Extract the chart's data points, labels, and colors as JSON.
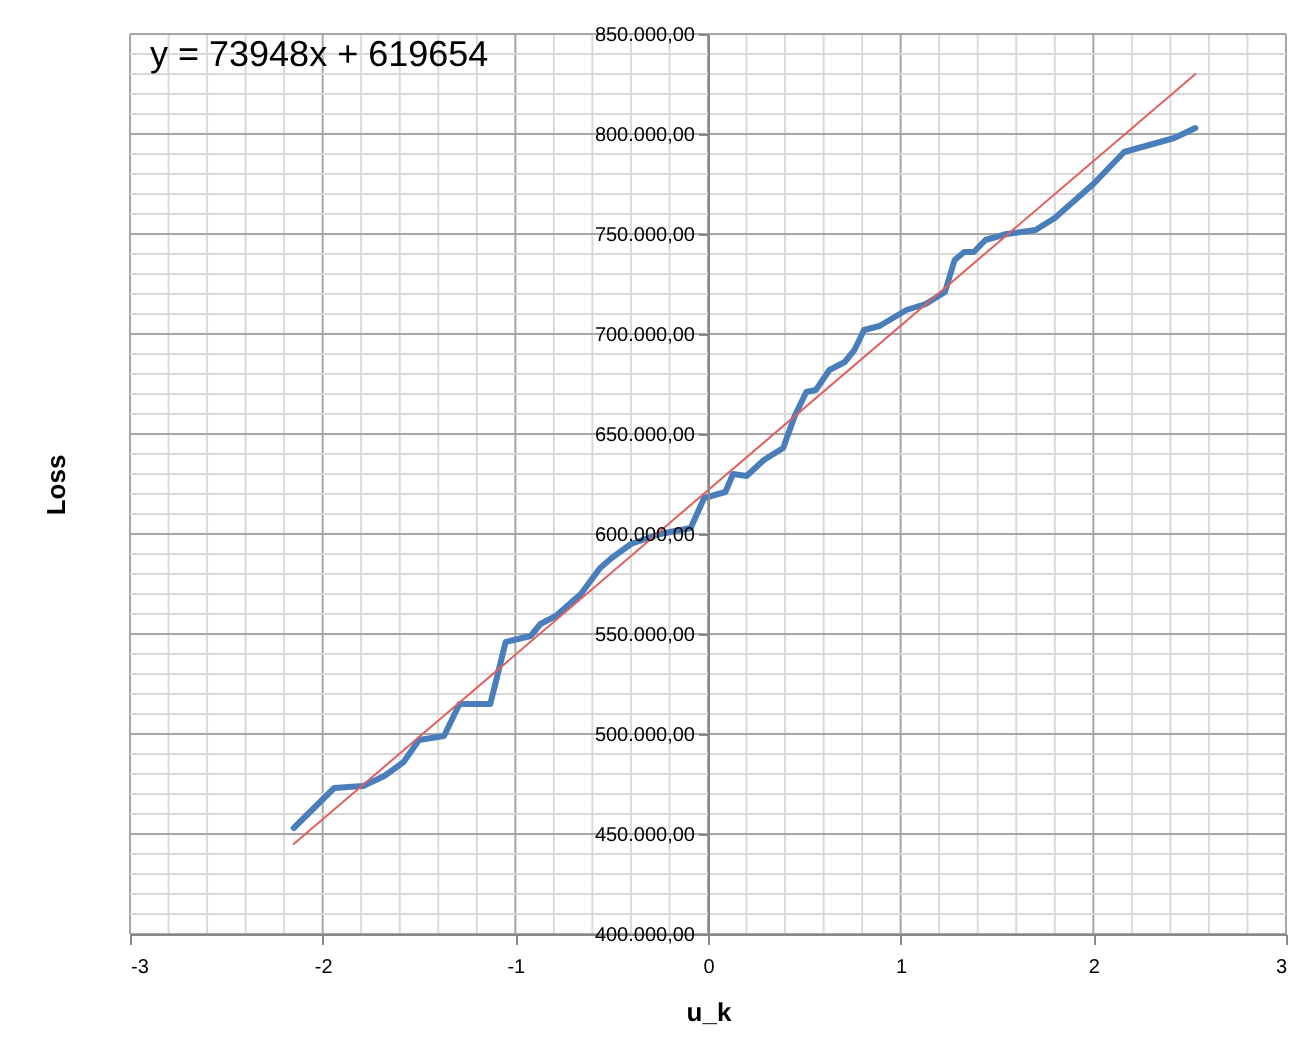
{
  "chart_data": {
    "type": "line",
    "xlabel": "u_k",
    "ylabel": "Loss",
    "annotations": [
      "y = 73948x + 619654"
    ],
    "xlim": [
      -3,
      3
    ],
    "xticks": [
      -3,
      {
        "value": -2.8,
        "label": null
      },
      {
        "value": -2.6,
        "label": null
      },
      {
        "value": -2.4,
        "label": null
      },
      {
        "value": -2.2,
        "label": null
      },
      -2,
      {
        "value": -1.8,
        "label": null
      },
      {
        "value": -1.6,
        "label": null
      },
      {
        "value": -1.4,
        "label": null
      },
      {
        "value": -1.2,
        "label": null
      },
      -1,
      {
        "value": -0.8,
        "label": null
      },
      {
        "value": -0.6,
        "label": null
      },
      {
        "value": -0.4,
        "label": null
      },
      {
        "value": -0.2,
        "label": null
      },
      0,
      {
        "value": 0.2,
        "label": null
      },
      {
        "value": 0.4,
        "label": null
      },
      {
        "value": 0.6,
        "label": null
      },
      {
        "value": 0.8,
        "label": null
      },
      1,
      {
        "value": 1.2,
        "label": null
      },
      {
        "value": 1.4,
        "label": null
      },
      {
        "value": 1.6,
        "label": null
      },
      {
        "value": 1.8,
        "label": null
      },
      2,
      {
        "value": 2.2,
        "label": null
      },
      {
        "value": 2.4,
        "label": null
      },
      {
        "value": 2.6,
        "label": null
      },
      {
        "value": 2.8,
        "label": null
      },
      3
    ],
    "ylim": [
      400000,
      850000
    ],
    "yticks": [
      {
        "value": 400000,
        "label": "400.000,00"
      },
      {
        "value": 410000,
        "label": null
      },
      {
        "value": 420000,
        "label": null
      },
      {
        "value": 430000,
        "label": null
      },
      {
        "value": 440000,
        "label": null
      },
      {
        "value": 450000,
        "label": "450.000,00"
      },
      {
        "value": 460000,
        "label": null
      },
      {
        "value": 470000,
        "label": null
      },
      {
        "value": 480000,
        "label": null
      },
      {
        "value": 490000,
        "label": null
      },
      {
        "value": 500000,
        "label": "500.000,00"
      },
      {
        "value": 510000,
        "label": null
      },
      {
        "value": 520000,
        "label": null
      },
      {
        "value": 530000,
        "label": null
      },
      {
        "value": 540000,
        "label": null
      },
      {
        "value": 550000,
        "label": "550.000,00"
      },
      {
        "value": 560000,
        "label": null
      },
      {
        "value": 570000,
        "label": null
      },
      {
        "value": 580000,
        "label": null
      },
      {
        "value": 590000,
        "label": null
      },
      {
        "value": 600000,
        "label": "600.000,00"
      },
      {
        "value": 610000,
        "label": null
      },
      {
        "value": 620000,
        "label": null
      },
      {
        "value": 630000,
        "label": null
      },
      {
        "value": 640000,
        "label": null
      },
      {
        "value": 650000,
        "label": "650.000,00"
      },
      {
        "value": 660000,
        "label": null
      },
      {
        "value": 670000,
        "label": null
      },
      {
        "value": 680000,
        "label": null
      },
      {
        "value": 690000,
        "label": null
      },
      {
        "value": 700000,
        "label": "700.000,00"
      },
      {
        "value": 710000,
        "label": null
      },
      {
        "value": 720000,
        "label": null
      },
      {
        "value": 730000,
        "label": null
      },
      {
        "value": 740000,
        "label": null
      },
      {
        "value": 750000,
        "label": "750.000,00"
      },
      {
        "value": 760000,
        "label": null
      },
      {
        "value": 770000,
        "label": null
      },
      {
        "value": 780000,
        "label": null
      },
      {
        "value": 790000,
        "label": null
      },
      {
        "value": 800000,
        "label": "800.000,00"
      },
      {
        "value": 810000,
        "label": null
      },
      {
        "value": 820000,
        "label": null
      },
      {
        "value": 830000,
        "label": null
      },
      {
        "value": 840000,
        "label": null
      },
      {
        "value": 850000,
        "label": "850.000,00"
      }
    ],
    "grid": true,
    "marker": "none",
    "line_style": "solid",
    "series": [
      {
        "color": "#4a7ebb",
        "x": [
          -2.15,
          -1.94,
          -1.79,
          -1.68,
          -1.58,
          -1.5,
          -1.37,
          -1.29,
          -1.13,
          -1.05,
          -0.92,
          -0.87,
          -0.79,
          -0.66,
          -0.56,
          -0.5,
          -0.4,
          -0.25,
          -0.09,
          -0.02,
          0.09,
          0.13,
          0.2,
          0.29,
          0.39,
          0.45,
          0.51,
          0.56,
          0.63,
          0.71,
          0.76,
          0.81,
          0.89,
          1.03,
          1.13,
          1.23,
          1.28,
          1.33,
          1.38,
          1.44,
          1.55,
          1.7,
          1.8,
          2.0,
          2.16,
          2.42,
          2.53
        ],
        "values": [
          453000,
          473000,
          474000,
          479000,
          486000,
          497000,
          499000,
          515000,
          515000,
          546000,
          549000,
          555000,
          559000,
          570000,
          583000,
          588000,
          595000,
          600000,
          603000,
          618000,
          621000,
          630000,
          629000,
          637000,
          643000,
          659000,
          671000,
          672000,
          682000,
          686000,
          692000,
          702000,
          704000,
          712000,
          715000,
          721000,
          737000,
          741000,
          741000,
          747000,
          750000,
          752000,
          758000,
          775000,
          791000,
          798000,
          803000
        ]
      },
      {
        "type": "line",
        "color": "#e06060",
        "x": [
          -2.15,
          2.53
        ],
        "values": [
          445000,
          830000
        ]
      }
    ]
  }
}
